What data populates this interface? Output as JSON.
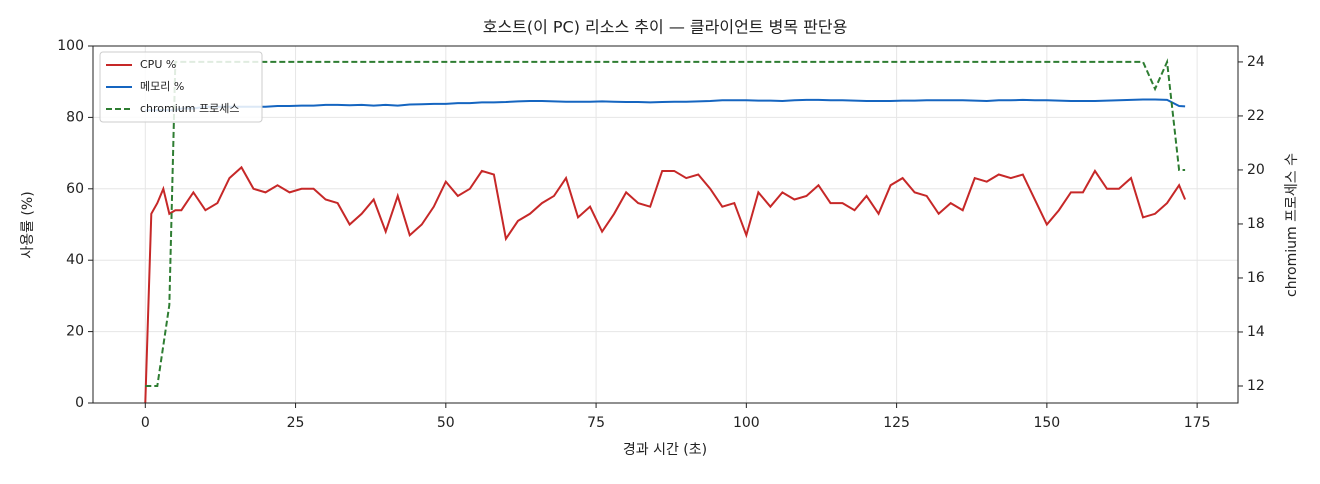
{
  "chart_data": {
    "type": "line",
    "title": "호스트(이 PC) 리소스 추이 — 클라이언트 병목 판단용",
    "x_label": "경과 시간 (초)",
    "y_label": "사용률 (%)",
    "y2_label": "chromium 프로세스 수",
    "x": [
      0,
      1,
      2,
      3,
      4,
      5,
      6,
      8,
      10,
      12,
      14,
      16,
      18,
      20,
      22,
      24,
      26,
      28,
      30,
      32,
      34,
      36,
      38,
      40,
      42,
      44,
      46,
      48,
      50,
      52,
      54,
      56,
      58,
      60,
      62,
      64,
      66,
      68,
      70,
      72,
      74,
      76,
      78,
      80,
      82,
      84,
      86,
      88,
      90,
      92,
      94,
      96,
      98,
      100,
      102,
      104,
      106,
      108,
      110,
      112,
      114,
      116,
      118,
      120,
      122,
      124,
      126,
      128,
      130,
      132,
      134,
      136,
      138,
      140,
      142,
      144,
      146,
      148,
      150,
      152,
      154,
      156,
      158,
      160,
      162,
      164,
      166,
      168,
      170,
      172,
      173
    ],
    "series": [
      {
        "name": "CPU %",
        "color": "#c62828",
        "linestyle": "solid",
        "values": [
          0,
          53,
          56,
          60,
          53,
          54,
          54,
          59,
          54,
          56,
          63,
          66,
          60,
          59,
          61,
          59,
          60,
          60,
          57,
          56,
          50,
          53,
          57,
          48,
          58,
          47,
          50,
          55,
          62,
          58,
          60,
          65,
          64,
          46,
          51,
          53,
          56,
          58,
          63,
          52,
          55,
          48,
          53,
          59,
          56,
          55,
          65,
          65,
          63,
          64,
          60,
          55,
          56,
          47,
          59,
          55,
          59,
          57,
          58,
          61,
          56,
          56,
          54,
          58,
          53,
          61,
          63,
          59,
          58,
          53,
          56,
          54,
          63,
          62,
          64,
          63,
          64,
          57,
          50,
          54,
          59,
          59,
          65,
          60,
          60,
          63,
          52,
          53,
          56,
          61,
          57
        ]
      },
      {
        "name": "메모리 %",
        "color": "#1565c0",
        "linestyle": "solid",
        "values": [
          82,
          82,
          82,
          82,
          82,
          82,
          82.5,
          82.5,
          83,
          83,
          83,
          83,
          83,
          83,
          83.2,
          83.2,
          83.3,
          83.3,
          83.5,
          83.5,
          83.4,
          83.5,
          83.3,
          83.5,
          83.3,
          83.6,
          83.7,
          83.8,
          83.8,
          84,
          84,
          84.2,
          84.2,
          84.3,
          84.5,
          84.6,
          84.6,
          84.5,
          84.4,
          84.4,
          84.4,
          84.5,
          84.4,
          84.3,
          84.3,
          84.2,
          84.3,
          84.4,
          84.4,
          84.5,
          84.6,
          84.8,
          84.8,
          84.8,
          84.7,
          84.7,
          84.6,
          84.8,
          84.9,
          84.9,
          84.8,
          84.8,
          84.7,
          84.6,
          84.6,
          84.6,
          84.7,
          84.7,
          84.8,
          84.8,
          84.8,
          84.8,
          84.7,
          84.6,
          84.8,
          84.8,
          84.9,
          84.8,
          84.8,
          84.7,
          84.6,
          84.6,
          84.6,
          84.7,
          84.8,
          84.9,
          85,
          85,
          84.9,
          83.2,
          83.1
        ]
      },
      {
        "name": "chromium 프로세스",
        "color": "#2e7d32",
        "linestyle": "dashed",
        "axis": "y2",
        "values": [
          12,
          12,
          12,
          13.5,
          15,
          24,
          24,
          24,
          24,
          24,
          24,
          24,
          24,
          24,
          24,
          24,
          24,
          24,
          24,
          24,
          24,
          24,
          24,
          24,
          24,
          24,
          24,
          24,
          24,
          24,
          24,
          24,
          24,
          24,
          24,
          24,
          24,
          24,
          24,
          24,
          24,
          24,
          24,
          24,
          24,
          24,
          24,
          24,
          24,
          24,
          24,
          24,
          24,
          24,
          24,
          24,
          24,
          24,
          24,
          24,
          24,
          24,
          24,
          24,
          24,
          24,
          24,
          24,
          24,
          24,
          24,
          24,
          24,
          24,
          24,
          24,
          24,
          24,
          24,
          24,
          24,
          24,
          24,
          24,
          24,
          24,
          24,
          23,
          24,
          20,
          20
        ]
      }
    ],
    "xlim": [
      -8.7,
      181.8
    ],
    "xticks": [
      0,
      25,
      50,
      75,
      100,
      125,
      150,
      175
    ],
    "ylim": [
      0,
      100
    ],
    "yticks": [
      0,
      20,
      40,
      60,
      80,
      100
    ],
    "y2lim": [
      11.37,
      24.59
    ],
    "y2ticks": [
      12,
      14,
      16,
      18,
      20,
      22,
      24
    ],
    "grid": true,
    "legend": "upper-left"
  }
}
